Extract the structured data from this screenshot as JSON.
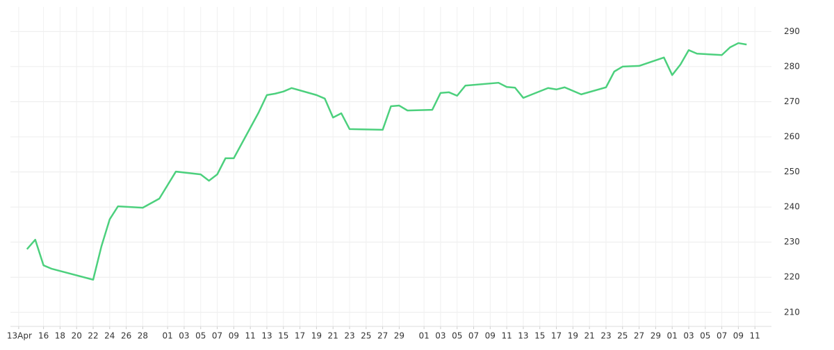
{
  "chart_data": {
    "type": "line",
    "x": [
      "Apr 14",
      "Apr 15",
      "Apr 16",
      "Apr 17",
      "Apr 22",
      "Apr 23",
      "Apr 24",
      "Apr 25",
      "Apr 28",
      "Apr 30",
      "May 2",
      "May 5",
      "May 6",
      "May 7",
      "May 8",
      "May 9",
      "May 12",
      "May 13",
      "May 14",
      "May 15",
      "May 16",
      "May 19",
      "May 20",
      "May 21",
      "May 22",
      "May 23",
      "May 27",
      "May 28",
      "May 29",
      "May 30",
      "Jun 2",
      "Jun 3",
      "Jun 4",
      "Jun 5",
      "Jun 6",
      "Jun 10",
      "Jun 11",
      "Jun 12",
      "Jun 13",
      "Jun 16",
      "Jun 17",
      "Jun 18",
      "Jun 20",
      "Jun 23",
      "Jun 24",
      "Jun 25",
      "Jun 27",
      "Jun 30",
      "Jul 1",
      "Jul 2",
      "Jul 3",
      "Jul 4",
      "Jul 7",
      "Jul 8",
      "Jul 9",
      "Jul 10"
    ],
    "series": [
      {
        "color": "#4cd07d",
        "values": [
          228.0,
          230.7,
          223.4,
          222.4,
          219.3,
          228.8,
          236.5,
          240.2,
          239.8,
          242.4,
          250.1,
          249.3,
          247.5,
          249.3,
          253.9,
          253.9,
          266.9,
          271.9,
          272.3,
          272.9,
          273.9,
          271.9,
          270.9,
          265.5,
          266.7,
          262.2,
          262.0,
          268.7,
          268.9,
          267.5,
          267.7,
          272.5,
          272.7,
          271.7,
          274.6,
          275.4,
          274.2,
          274.0,
          271.1,
          273.9,
          273.5,
          274.1,
          272.1,
          274.1,
          278.6,
          280.0,
          280.2,
          282.6,
          277.6,
          280.6,
          284.7,
          283.7,
          283.3,
          285.5,
          286.7,
          286.3
        ]
      }
    ],
    "xlim": [
      "Apr 12",
      "Jul 13"
    ],
    "xticks": [
      {
        "value": "Apr 13",
        "label": "13Apr"
      },
      {
        "value": "Apr 16",
        "label": "16"
      },
      {
        "value": "Apr 18",
        "label": "18"
      },
      {
        "value": "Apr 20",
        "label": "20"
      },
      {
        "value": "Apr 22",
        "label": "22"
      },
      {
        "value": "Apr 24",
        "label": "24"
      },
      {
        "value": "Apr 26",
        "label": "26"
      },
      {
        "value": "Apr 28",
        "label": "28"
      },
      {
        "value": "May 1",
        "label": "01"
      },
      {
        "value": "May 3",
        "label": "03"
      },
      {
        "value": "May 5",
        "label": "05"
      },
      {
        "value": "May 7",
        "label": "07"
      },
      {
        "value": "May 9",
        "label": "09"
      },
      {
        "value": "May 11",
        "label": "11"
      },
      {
        "value": "May 13",
        "label": "13"
      },
      {
        "value": "May 15",
        "label": "15"
      },
      {
        "value": "May 17",
        "label": "17"
      },
      {
        "value": "May 19",
        "label": "19"
      },
      {
        "value": "May 21",
        "label": "21"
      },
      {
        "value": "May 23",
        "label": "23"
      },
      {
        "value": "May 25",
        "label": "25"
      },
      {
        "value": "May 27",
        "label": "27"
      },
      {
        "value": "May 29",
        "label": "29"
      },
      {
        "value": "Jun 1",
        "label": "01"
      },
      {
        "value": "Jun 3",
        "label": "03"
      },
      {
        "value": "Jun 5",
        "label": "05"
      },
      {
        "value": "Jun 7",
        "label": "07"
      },
      {
        "value": "Jun 9",
        "label": "09"
      },
      {
        "value": "Jun 11",
        "label": "11"
      },
      {
        "value": "Jun 13",
        "label": "13"
      },
      {
        "value": "Jun 15",
        "label": "15"
      },
      {
        "value": "Jun 17",
        "label": "17"
      },
      {
        "value": "Jun 19",
        "label": "19"
      },
      {
        "value": "Jun 21",
        "label": "21"
      },
      {
        "value": "Jun 23",
        "label": "23"
      },
      {
        "value": "Jun 25",
        "label": "25"
      },
      {
        "value": "Jun 27",
        "label": "27"
      },
      {
        "value": "Jun 29",
        "label": "29"
      },
      {
        "value": "Jul 1",
        "label": "01"
      },
      {
        "value": "Jul 3",
        "label": "03"
      },
      {
        "value": "Jul 5",
        "label": "05"
      },
      {
        "value": "Jul 7",
        "label": "07"
      },
      {
        "value": "Jul 9",
        "label": "09"
      },
      {
        "value": "Jul 11",
        "label": "11"
      }
    ],
    "ylim": [
      206,
      297
    ],
    "yticks": [
      210,
      220,
      230,
      240,
      250,
      260,
      270,
      280,
      290
    ],
    "grid": true
  }
}
